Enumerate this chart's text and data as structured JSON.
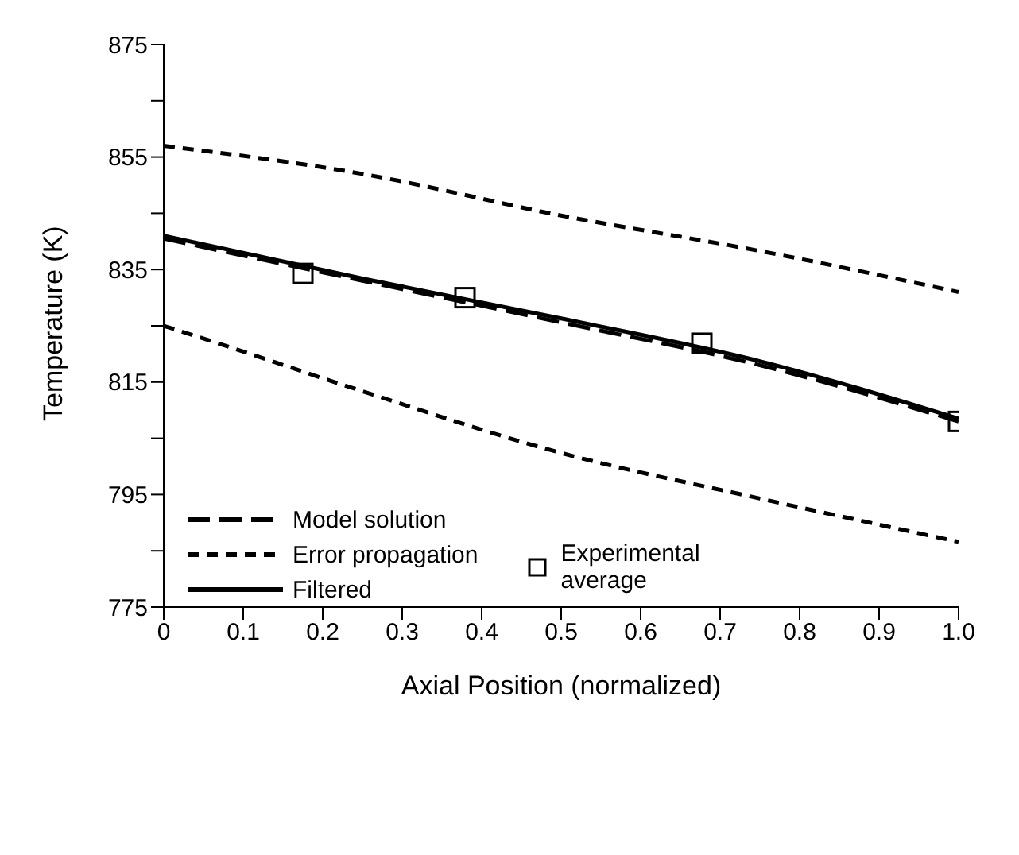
{
  "chart_data": {
    "type": "line",
    "xlabel": "Axial Position (normalized)",
    "ylabel": "Temperature (K)",
    "xlim": [
      0,
      1
    ],
    "ylim": [
      775,
      875
    ],
    "xticks": [
      0,
      0.1,
      0.2,
      0.3,
      0.4,
      0.5,
      0.6,
      0.7,
      0.8,
      0.9,
      {
        "value": 1,
        "label": "1.0"
      }
    ],
    "yticks": [
      775,
      {
        "value": 785,
        "label": null
      },
      795,
      {
        "value": 805,
        "label": null
      },
      815,
      {
        "value": 825,
        "label": null
      },
      835,
      {
        "value": 845,
        "label": null
      },
      855,
      {
        "value": 865,
        "label": null
      },
      875
    ],
    "grid": false,
    "legend": "bottom left",
    "series": [
      {
        "name": "Model solution",
        "line_style": "dashed",
        "color": "#000000",
        "x": [
          0,
          0.25,
          0.5,
          0.75,
          1
        ],
        "values": [
          840.5,
          833,
          825.6,
          818,
          808
        ]
      },
      {
        "name": "Error propagation",
        "line_style": "dotted",
        "color": "#000000",
        "x": [
          0,
          0.25,
          0.5,
          0.75,
          1
        ],
        "values": [
          857,
          852,
          844.6,
          838.3,
          831
        ]
      },
      {
        "line_style": "dotted",
        "color": "#000000",
        "x": [
          0,
          0.04,
          0.23,
          0.5,
          0.75,
          1
        ],
        "values": [
          825,
          823.2,
          814.3,
          802.4,
          794.3,
          786.6
        ]
      },
      {
        "name": "Filtered",
        "line_style": "solid",
        "color": "#000000",
        "x": [
          0,
          0.25,
          0.5,
          0.75,
          1
        ],
        "values": [
          841,
          833.4,
          826.3,
          818.7,
          808.5
        ]
      },
      {
        "name": "Experimental average",
        "type": "scatter",
        "marker": "square",
        "color": "#000000",
        "x": [
          0.175,
          0.379,
          0.677,
          1
        ],
        "values": [
          834.3,
          830,
          821.9,
          808
        ]
      }
    ]
  }
}
